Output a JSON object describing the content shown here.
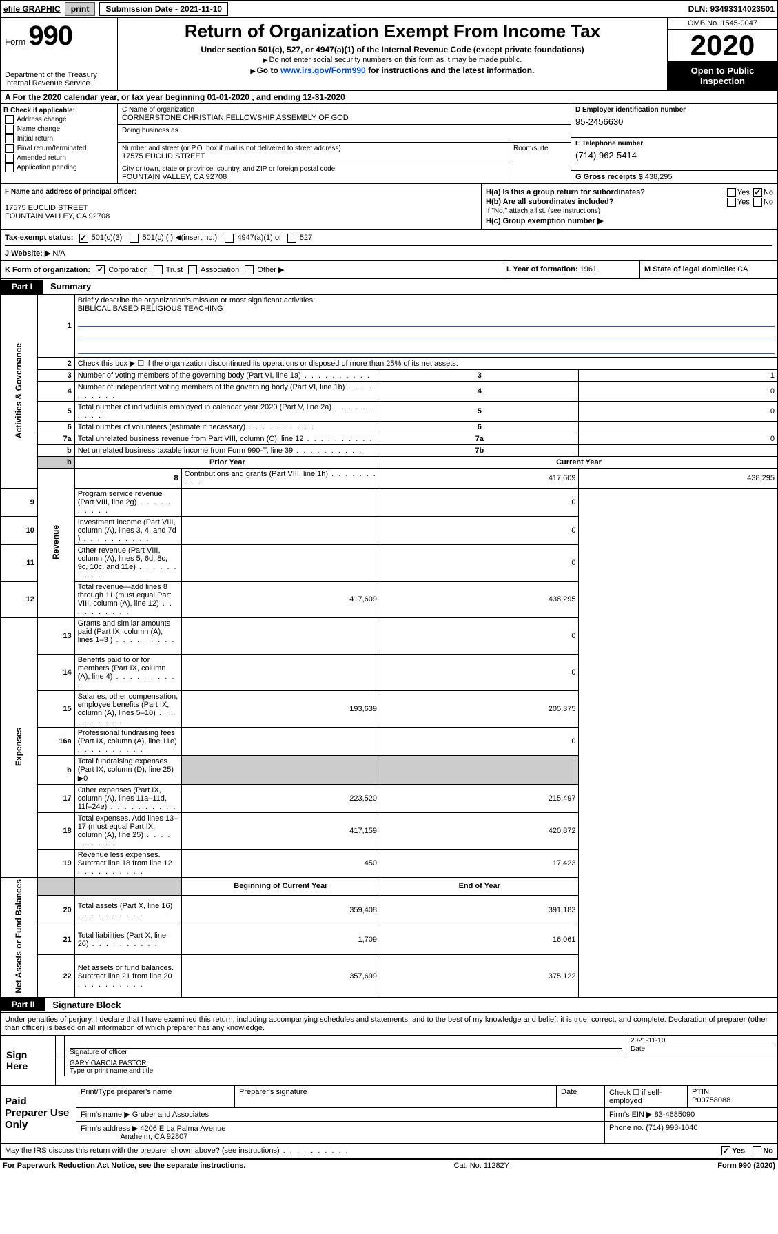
{
  "topbar": {
    "efile": "efile GRAPHIC",
    "print": "print",
    "submission": "Submission Date - 2021-11-10",
    "dln": "DLN: 93493314023501"
  },
  "header": {
    "form_word": "Form",
    "form_num": "990",
    "dept1": "Department of the Treasury",
    "dept2": "Internal Revenue Service",
    "title": "Return of Organization Exempt From Income Tax",
    "subtitle": "Under section 501(c), 527, or 4947(a)(1) of the Internal Revenue Code (except private foundations)",
    "note1": "Do not enter social security numbers on this form as it may be made public.",
    "goto_prefix": "Go to ",
    "goto_link": "www.irs.gov/Form990",
    "goto_suffix": " for instructions and the latest information.",
    "omb": "OMB No. 1545-0047",
    "year": "2020",
    "open1": "Open to Public",
    "open2": "Inspection"
  },
  "rowA": {
    "text": "A For the 2020 calendar year, or tax year beginning 01-01-2020   , and ending 12-31-2020"
  },
  "colB": {
    "header": "B Check if applicable:",
    "opts": [
      "Address change",
      "Name change",
      "Initial return",
      "Final return/terminated",
      "Amended return",
      "Application pending"
    ]
  },
  "colC": {
    "name_label": "C Name of organization",
    "name": "CORNERSTONE CHRISTIAN FELLOWSHIP ASSEMBLY OF GOD",
    "dba_label": "Doing business as",
    "street_label": "Number and street (or P.O. box if mail is not delivered to street address)",
    "street": "17575 EUCLID STREET",
    "room_label": "Room/suite",
    "city_label": "City or town, state or province, country, and ZIP or foreign postal code",
    "city": "FOUNTAIN VALLEY, CA  92708"
  },
  "colD": {
    "label": "D Employer identification number",
    "value": "95-2456630"
  },
  "colE": {
    "label": "E Telephone number",
    "value": "(714) 962-5414"
  },
  "colG": {
    "label": "G Gross receipts $",
    "value": "438,295"
  },
  "colF": {
    "label": "F Name and address of principal officer:",
    "addr1": "17575 EUCLID STREET",
    "addr2": "FOUNTAIN VALLEY, CA  92708"
  },
  "colH": {
    "ha": "H(a)  Is this a group return for subordinates?",
    "hb": "H(b)  Are all subordinates included?",
    "hb_note": "If \"No,\" attach a list. (see instructions)",
    "hc": "H(c)  Group exemption number ▶"
  },
  "rowI": {
    "label": "Tax-exempt status:",
    "opt1": "501(c)(3)",
    "opt2": "501(c) (  ) ◀(insert no.)",
    "opt3": "4947(a)(1) or",
    "opt4": "527"
  },
  "rowJ": {
    "label": "J  Website: ▶",
    "value": "N/A"
  },
  "rowK": {
    "label": "K Form of organization:",
    "opts": [
      "Corporation",
      "Trust",
      "Association",
      "Other ▶"
    ],
    "l_label": "L Year of formation:",
    "l_val": "1961",
    "m_label": "M State of legal domicile:",
    "m_val": "CA"
  },
  "part1": {
    "tag": "Part I",
    "title": "Summary"
  },
  "summary": {
    "q1_label": "Briefly describe the organization's mission or most significant activities:",
    "q1_val": "BIBLICAL BASED RELIGIOUS TEACHING",
    "q2": "Check this box ▶ ☐  if the organization discontinued its operations or disposed of more than 25% of its net assets.",
    "rows": [
      {
        "n": "3",
        "desc": "Number of voting members of the governing body (Part VI, line 1a)",
        "box": "3",
        "val": "1"
      },
      {
        "n": "4",
        "desc": "Number of independent voting members of the governing body (Part VI, line 1b)",
        "box": "4",
        "val": "0"
      },
      {
        "n": "5",
        "desc": "Total number of individuals employed in calendar year 2020 (Part V, line 2a)",
        "box": "5",
        "val": "0"
      },
      {
        "n": "6",
        "desc": "Total number of volunteers (estimate if necessary)",
        "box": "6",
        "val": ""
      },
      {
        "n": "7a",
        "desc": "Total unrelated business revenue from Part VIII, column (C), line 12",
        "box": "7a",
        "val": "0"
      },
      {
        "n": "b",
        "desc": "Net unrelated business taxable income from Form 990-T, line 39",
        "box": "7b",
        "val": ""
      }
    ],
    "col_prior": "Prior Year",
    "col_current": "Current Year",
    "revenue_rows": [
      {
        "n": "8",
        "desc": "Contributions and grants (Part VIII, line 1h)",
        "p": "417,609",
        "c": "438,295"
      },
      {
        "n": "9",
        "desc": "Program service revenue (Part VIII, line 2g)",
        "p": "",
        "c": "0"
      },
      {
        "n": "10",
        "desc": "Investment income (Part VIII, column (A), lines 3, 4, and 7d )",
        "p": "",
        "c": "0"
      },
      {
        "n": "11",
        "desc": "Other revenue (Part VIII, column (A), lines 5, 6d, 8c, 9c, 10c, and 11e)",
        "p": "",
        "c": "0"
      },
      {
        "n": "12",
        "desc": "Total revenue—add lines 8 through 11 (must equal Part VIII, column (A), line 12)",
        "p": "417,609",
        "c": "438,295"
      }
    ],
    "expense_rows": [
      {
        "n": "13",
        "desc": "Grants and similar amounts paid (Part IX, column (A), lines 1–3 )",
        "p": "",
        "c": "0"
      },
      {
        "n": "14",
        "desc": "Benefits paid to or for members (Part IX, column (A), line 4)",
        "p": "",
        "c": "0"
      },
      {
        "n": "15",
        "desc": "Salaries, other compensation, employee benefits (Part IX, column (A), lines 5–10)",
        "p": "193,639",
        "c": "205,375"
      },
      {
        "n": "16a",
        "desc": "Professional fundraising fees (Part IX, column (A), line 11e)",
        "p": "",
        "c": "0"
      },
      {
        "n": "b",
        "desc": "Total fundraising expenses (Part IX, column (D), line 25) ▶0",
        "p": "",
        "c": "",
        "shadeP": true,
        "shadeC": true
      },
      {
        "n": "17",
        "desc": "Other expenses (Part IX, column (A), lines 11a–11d, 11f–24e)",
        "p": "223,520",
        "c": "215,497"
      },
      {
        "n": "18",
        "desc": "Total expenses. Add lines 13–17 (must equal Part IX, column (A), line 25)",
        "p": "417,159",
        "c": "420,872"
      },
      {
        "n": "19",
        "desc": "Revenue less expenses. Subtract line 18 from line 12",
        "p": "450",
        "c": "17,423"
      }
    ],
    "col_begin": "Beginning of Current Year",
    "col_end": "End of Year",
    "net_rows": [
      {
        "n": "20",
        "desc": "Total assets (Part X, line 16)",
        "p": "359,408",
        "c": "391,183"
      },
      {
        "n": "21",
        "desc": "Total liabilities (Part X, line 26)",
        "p": "1,709",
        "c": "16,061"
      },
      {
        "n": "22",
        "desc": "Net assets or fund balances. Subtract line 21 from line 20",
        "p": "357,699",
        "c": "375,122"
      }
    ],
    "side_labels": {
      "gov": "Activities & Governance",
      "rev": "Revenue",
      "exp": "Expenses",
      "net": "Net Assets or Fund Balances"
    }
  },
  "part2": {
    "tag": "Part II",
    "title": "Signature Block"
  },
  "perjury": "Under penalties of perjury, I declare that I have examined this return, including accompanying schedules and statements, and to the best of my knowledge and belief, it is true, correct, and complete. Declaration of preparer (other than officer) is based on all information of which preparer has any knowledge.",
  "sign": {
    "left": "Sign Here",
    "sig_label": "Signature of officer",
    "date_val": "2021-11-10",
    "date_label": "Date",
    "name_val": "GARY GARCIA  PASTOR",
    "name_label": "Type or print name and title"
  },
  "preparer": {
    "left": "Paid Preparer Use Only",
    "h1": "Print/Type preparer's name",
    "h2": "Preparer's signature",
    "h3": "Date",
    "h4a": "Check ☐ if self-employed",
    "h5": "PTIN",
    "ptin": "P00758088",
    "firm_name_label": "Firm's name    ▶",
    "firm_name": "Gruber and Associates",
    "firm_ein_label": "Firm's EIN ▶",
    "firm_ein": "83-4685090",
    "firm_addr_label": "Firm's address ▶",
    "firm_addr1": "4206 E La Palma Avenue",
    "firm_addr2": "Anaheim, CA  92807",
    "phone_label": "Phone no.",
    "phone": "(714) 993-1040"
  },
  "discuss": "May the IRS discuss this return with the preparer shown above? (see instructions)",
  "footer": {
    "left": "For Paperwork Reduction Act Notice, see the separate instructions.",
    "mid": "Cat. No. 11282Y",
    "right": "Form 990 (2020)"
  }
}
